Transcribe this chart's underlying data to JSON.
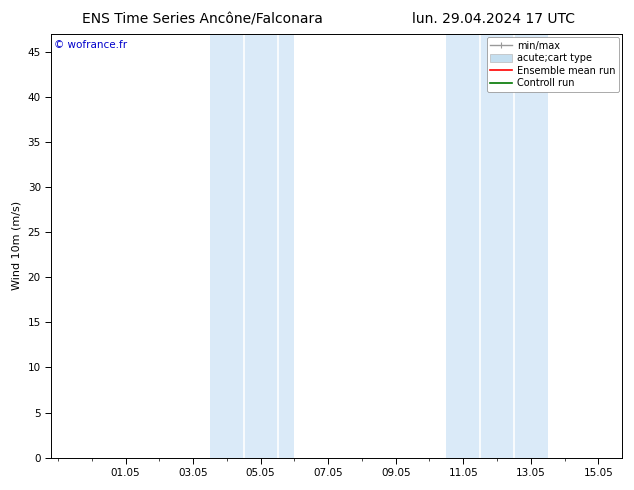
{
  "title_left": "ENS Time Series Ancône/Falconara",
  "title_right": "lun. 29.04.2024 17 UTC",
  "ylabel": "Wind 10m (m/s)",
  "xtick_labels": [
    "01.05",
    "03.05",
    "05.05",
    "07.05",
    "09.05",
    "11.05",
    "13.05",
    "15.05"
  ],
  "xtick_positions": [
    2,
    4,
    6,
    8,
    10,
    12,
    14,
    16
  ],
  "xlim": [
    -0.2,
    16.7
  ],
  "ylim": [
    0,
    47
  ],
  "yticks": [
    0,
    5,
    10,
    15,
    20,
    25,
    30,
    35,
    40,
    45
  ],
  "background_color": "#ffffff",
  "plot_bg_color": "#ffffff",
  "band1_x0": 4.5,
  "band1_x1": 7.0,
  "band2_x0": 11.5,
  "band2_x1": 14.5,
  "band_color": "#daeaf8",
  "band_dividers": [
    5.5,
    6.5,
    12.5,
    13.5
  ],
  "watermark": "© wofrance.fr",
  "watermark_color": "#0000cc",
  "legend_items": [
    {
      "label": "min/max",
      "color": "#999999"
    },
    {
      "label": "acute;cart type",
      "color": "#c5dff0"
    },
    {
      "label": "Ensemble mean run",
      "color": "#ff0000"
    },
    {
      "label": "Controll run",
      "color": "#007700"
    }
  ],
  "title_fontsize": 10,
  "axis_fontsize": 8,
  "tick_fontsize": 7.5,
  "legend_fontsize": 7
}
